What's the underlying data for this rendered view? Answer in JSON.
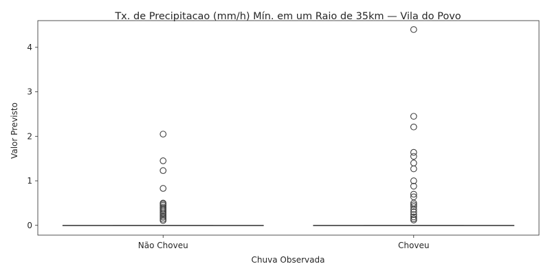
{
  "chart_data": {
    "type": "box",
    "title": "Tx. de Precipitacao (mm/h) Mín. em um Raio de 35km — Vila do Povo",
    "xlabel": "Chuva Observada",
    "ylabel": "Valor Previsto",
    "categories": [
      "Não Choveu",
      "Choveu"
    ],
    "yticks": [
      0,
      1,
      2,
      3,
      4
    ],
    "ylim": [
      -0.22,
      4.6
    ],
    "grid": false,
    "colors": {
      "box": "#dd8452",
      "line": "#5a5a5a",
      "text": "#262626"
    },
    "boxes": [
      {
        "category": "Não Choveu",
        "whisker_low": 0,
        "q1": 0,
        "median": 0,
        "q3": 0,
        "whisker_high": 0,
        "outliers": [
          2.05,
          1.45,
          1.23,
          0.83,
          0.5,
          0.48,
          0.45,
          0.41,
          0.38,
          0.35,
          0.32,
          0.28,
          0.25,
          0.21,
          0.18,
          0.14,
          0.11
        ]
      },
      {
        "category": "Choveu",
        "whisker_low": 0,
        "q1": 0,
        "median": 0,
        "q3": 0,
        "whisker_high": 0,
        "outliers": [
          4.4,
          2.45,
          2.21,
          1.64,
          1.55,
          1.4,
          1.27,
          1.0,
          0.88,
          0.7,
          0.64,
          0.5,
          0.46,
          0.42,
          0.36,
          0.3,
          0.24,
          0.19,
          0.15,
          0.12
        ]
      }
    ]
  }
}
